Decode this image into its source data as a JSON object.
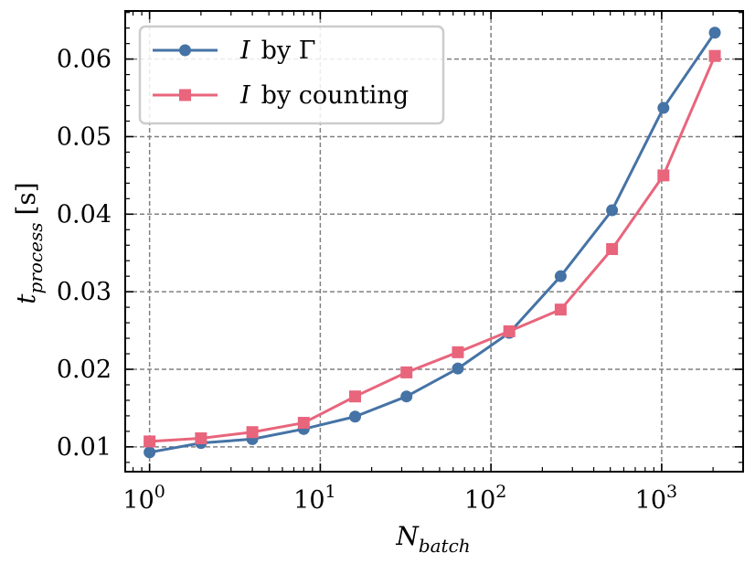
{
  "chart_data": {
    "type": "line",
    "xscale": "log",
    "x": [
      1,
      2,
      4,
      8,
      16,
      32,
      64,
      128,
      256,
      512,
      1024,
      2048
    ],
    "xlim": [
      0.72,
      3000
    ],
    "ylim": [
      0.0068,
      0.0662
    ],
    "grid": true,
    "legend_position": "top-left",
    "xlabel": {
      "main": "N",
      "sub": "batch"
    },
    "ylabel": {
      "main": "t",
      "sub": "process",
      "unit": "[s]"
    },
    "x_ticks": [
      {
        "value": 1,
        "base": "10",
        "exp": "0"
      },
      {
        "value": 10,
        "base": "10",
        "exp": "1"
      },
      {
        "value": 100,
        "base": "10",
        "exp": "2"
      },
      {
        "value": 1000,
        "base": "10",
        "exp": "3"
      }
    ],
    "y_ticks": [
      {
        "value": 0.01,
        "label": "0.01"
      },
      {
        "value": 0.02,
        "label": "0.02"
      },
      {
        "value": 0.03,
        "label": "0.03"
      },
      {
        "value": 0.04,
        "label": "0.04"
      },
      {
        "value": 0.05,
        "label": "0.05"
      },
      {
        "value": 0.06,
        "label": "0.06"
      }
    ],
    "series": [
      {
        "name": "I by Γ",
        "name_symbol": "I",
        "name_rest": "by Γ",
        "marker": "circle",
        "color": "#4573a5",
        "values": [
          0.0093,
          0.0105,
          0.011,
          0.0123,
          0.0139,
          0.0165,
          0.0201,
          0.0247,
          0.032,
          0.0405,
          0.0537,
          0.0634
        ]
      },
      {
        "name": "I by counting",
        "name_symbol": "I",
        "name_rest": "by counting",
        "marker": "square",
        "color": "#e8657c",
        "values": [
          0.0107,
          0.0111,
          0.0119,
          0.0131,
          0.0165,
          0.0196,
          0.0222,
          0.0249,
          0.0277,
          0.0355,
          0.045,
          0.0604
        ]
      }
    ]
  }
}
